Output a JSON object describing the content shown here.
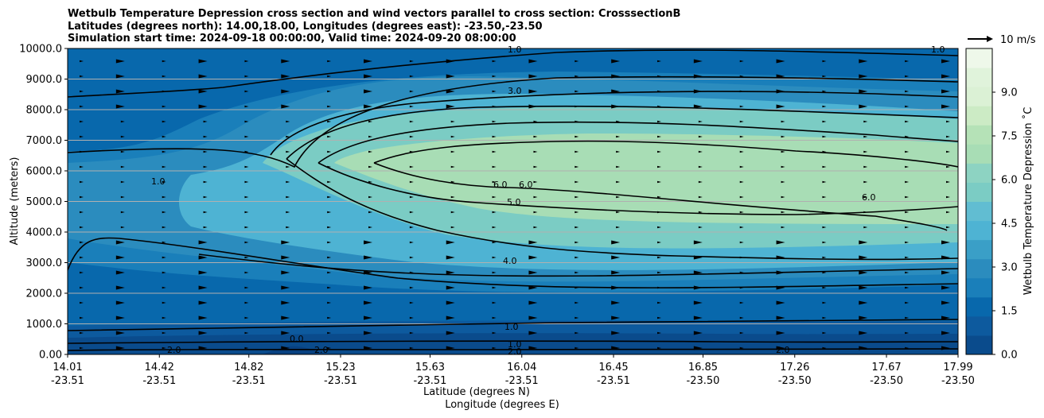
{
  "chart_data": {
    "type": "heatmap",
    "title_lines": [
      "Wetbulb Temperature Depression cross section and wind vectors parallel to cross section: CrosssectionB",
      "Latitudes (degrees north): 14.00,18.00, Longitudes (degrees east): -23.50,-23.50",
      "Simulation start time: 2024-09-18 00:00:00, Valid time: 2024-09-20 08:00:00"
    ],
    "ylabel": "Altitude (meters)",
    "xlabel_1": "Latitude (degrees N)",
    "xlabel_2": "Longitude (degrees E)",
    "ylim": [
      0,
      10000
    ],
    "y_ticks": [
      "0.00",
      "1000.0",
      "2000.0",
      "3000.0",
      "4000.0",
      "5000.0",
      "6000.0",
      "7000.0",
      "8000.0",
      "9000.0",
      "10000.0"
    ],
    "x_ticks": [
      {
        "lat": "14.01",
        "lon": "-23.51"
      },
      {
        "lat": "14.42",
        "lon": "-23.51"
      },
      {
        "lat": "14.82",
        "lon": "-23.51"
      },
      {
        "lat": "15.23",
        "lon": "-23.51"
      },
      {
        "lat": "15.63",
        "lon": "-23.51"
      },
      {
        "lat": "16.04",
        "lon": "-23.51"
      },
      {
        "lat": "16.45",
        "lon": "-23.51"
      },
      {
        "lat": "16.85",
        "lon": "-23.50"
      },
      {
        "lat": "17.26",
        "lon": "-23.50"
      },
      {
        "lat": "17.67",
        "lon": "-23.50"
      },
      {
        "lat": "17.99",
        "lon": "-23.50"
      }
    ],
    "colorbar": {
      "label": "Wetbulb Temperature Depression ˚C",
      "range": [
        0,
        10.5
      ],
      "ticks": [
        "0.0",
        "1.5",
        "3.0",
        "4.5",
        "6.0",
        "7.5",
        "9.0"
      ],
      "colors": [
        "#0a4b8c",
        "#0d5a9e",
        "#0868ac",
        "#1a7fba",
        "#2b8cbe",
        "#3a9fc7",
        "#4eb3d3",
        "#61bdd2",
        "#7bccc4",
        "#8dd3c2",
        "#a8ddb5",
        "#b5e2b7",
        "#ccebc5",
        "#dbf1d5",
        "#e0f3db",
        "#eef8ea"
      ]
    },
    "wind_reference": {
      "label": "10 m/s",
      "speed": 10
    },
    "contour_labels": [
      "1.0",
      "2.0",
      "3.0",
      "4.0",
      "5.0",
      "6.0",
      "0.0"
    ],
    "grid": true
  }
}
